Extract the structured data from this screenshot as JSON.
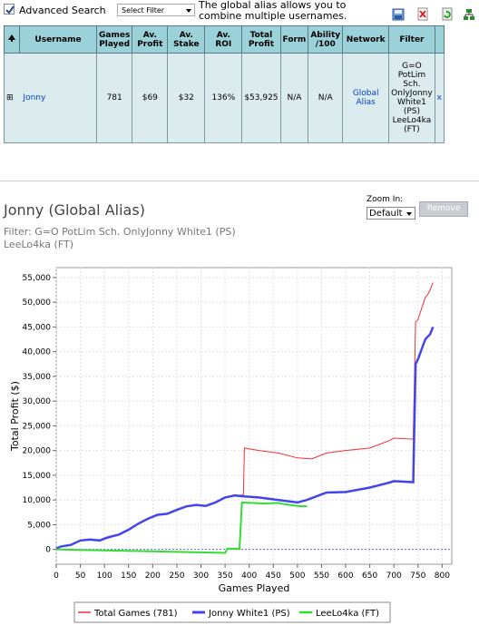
{
  "header": {
    "advanced_search_label": "Advanced Search",
    "select_filter": "Select Filter",
    "alias_note": "The global alias allows you to combine multiple usernames."
  },
  "table": {
    "columns": [
      "Username",
      "Games Played",
      "Av. Profit",
      "Av. Stake",
      "Av. ROI",
      "Total Profit",
      "Form",
      "Ability /100",
      "Network",
      "Filter"
    ],
    "row": {
      "expand": "⊞",
      "username": "Jonny",
      "games_played": "781",
      "av_profit": "$69",
      "av_stake": "$32",
      "av_roi": "136%",
      "total_profit": "$53,925",
      "form": "N/A",
      "ability": "N/A",
      "network": "Global Alias",
      "filter": "G=O PotLim Sch. OnlyJonny White1 (PS) LeeLo4ka (FT)",
      "remove": "x"
    }
  },
  "chart_section": {
    "title": "Jonny (Global Alias)",
    "filter_text": "Filter: G=O PotLim Sch. OnlyJonny White1 (PS) LeeLo4ka (FT)",
    "zoom_label": "Zoom In:",
    "zoom_value": "Default",
    "remove_button": "Remove"
  },
  "colors": {
    "table_header": "#9bd1d9",
    "table_row": "#dcebee",
    "series_total": "#ee3333",
    "series_jonny": "#4444ee",
    "series_lee": "#33dd33",
    "link": "#0044cc"
  },
  "chart_data": {
    "type": "line",
    "xlabel": "Games Played",
    "ylabel": "Total Profit ($)",
    "xlim": [
      0,
      820
    ],
    "ylim": [
      -3000,
      57000
    ],
    "xticks": [
      0,
      50,
      100,
      150,
      200,
      250,
      300,
      350,
      400,
      450,
      500,
      550,
      600,
      650,
      700,
      750,
      800
    ],
    "yticks": [
      0,
      5000,
      10000,
      15000,
      20000,
      25000,
      30000,
      35000,
      40000,
      45000,
      50000,
      55000
    ],
    "ytick_labels": [
      "0",
      "5,000",
      "10,000",
      "15,000",
      "20,000",
      "25,000",
      "30,000",
      "35,000",
      "40,000",
      "45,000",
      "50,000",
      "55,000"
    ],
    "grid": true,
    "legend_position": "bottom",
    "series": [
      {
        "name": "Total Games (781)",
        "x": [
          0,
          10,
          30,
          50,
          70,
          90,
          100,
          110,
          130,
          150,
          170,
          190,
          210,
          230,
          250,
          270,
          290,
          310,
          330,
          350,
          370,
          385,
          388,
          390,
          420,
          460,
          500,
          530,
          560,
          600,
          650,
          690,
          700,
          740,
          745,
          750,
          765,
          770,
          775,
          781
        ],
        "y": [
          200,
          600,
          900,
          1800,
          2000,
          1800,
          2200,
          2500,
          3000,
          4000,
          5200,
          6200,
          7000,
          7200,
          8000,
          8700,
          9000,
          8800,
          9500,
          10500,
          10900,
          11000,
          11000,
          20500,
          20000,
          19500,
          18500,
          18300,
          19500,
          20000,
          20500,
          22000,
          22500,
          22300,
          46000,
          46500,
          51000,
          51500,
          52500,
          54000
        ]
      },
      {
        "name": "Jonny White1 (PS)",
        "x": [
          0,
          10,
          30,
          50,
          70,
          90,
          100,
          110,
          130,
          150,
          170,
          190,
          210,
          230,
          250,
          270,
          290,
          310,
          330,
          350,
          370,
          390,
          420,
          460,
          500,
          520,
          560,
          600,
          650,
          690,
          700,
          740,
          745,
          750,
          765,
          770,
          775,
          781
        ],
        "y": [
          200,
          600,
          900,
          1800,
          2000,
          1800,
          2200,
          2500,
          3000,
          4000,
          5200,
          6200,
          7000,
          7200,
          8000,
          8700,
          9000,
          8800,
          9500,
          10500,
          10900,
          10700,
          10500,
          10000,
          9500,
          10000,
          11500,
          11600,
          12500,
          13500,
          13800,
          13600,
          37500,
          38500,
          42500,
          43000,
          43500,
          45000
        ]
      },
      {
        "name": "LeeLo4ka (FT)",
        "x": [
          0,
          50,
          100,
          150,
          200,
          250,
          300,
          350,
          355,
          380,
          385,
          430,
          460,
          470,
          500,
          520
        ],
        "y": [
          0,
          -100,
          -200,
          -300,
          -400,
          -500,
          -600,
          -700,
          200,
          100,
          9500,
          9300,
          9400,
          9200,
          8800,
          8700
        ]
      }
    ]
  }
}
